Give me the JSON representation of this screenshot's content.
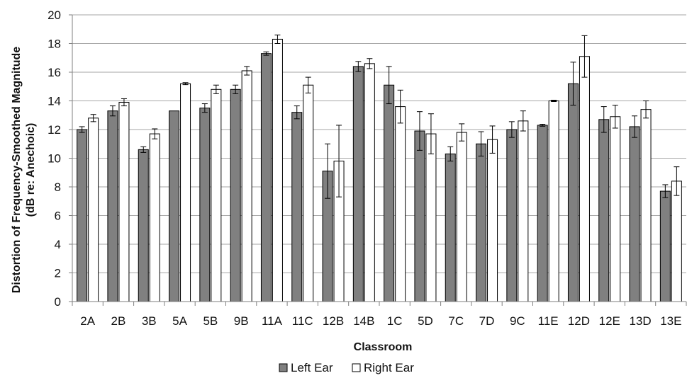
{
  "chart_data": {
    "type": "bar",
    "title": "",
    "xlabel": "Classroom",
    "ylabel": "Distortion  of Frequency-Smoothed Magnitude",
    "ylabel_line2": "(dB re: Anechoic)",
    "ylim": [
      0,
      20
    ],
    "ytick_step": 2,
    "grid": true,
    "legend_position": "bottom",
    "categories": [
      "2A",
      "2B",
      "3B",
      "5A",
      "5B",
      "9B",
      "11A",
      "11C",
      "12B",
      "14B",
      "1C",
      "5D",
      "7C",
      "7D",
      "9C",
      "11E",
      "12D",
      "12E",
      "13D",
      "13E"
    ],
    "series": [
      {
        "name": "Left Ear",
        "color": "#808080",
        "values": [
          12.0,
          13.3,
          10.6,
          13.3,
          13.5,
          14.8,
          17.3,
          13.2,
          9.1,
          16.4,
          15.1,
          11.9,
          10.3,
          11.0,
          12.0,
          12.3,
          15.2,
          12.7,
          12.2,
          7.7
        ],
        "errors": [
          0.2,
          0.35,
          0.2,
          0.0,
          0.3,
          0.3,
          0.12,
          0.45,
          1.9,
          0.35,
          1.3,
          1.35,
          0.5,
          0.85,
          0.55,
          0.07,
          1.5,
          0.9,
          0.75,
          0.45
        ]
      },
      {
        "name": "Right Ear",
        "color": "#ffffff",
        "values": [
          12.8,
          13.9,
          11.7,
          15.2,
          14.8,
          16.1,
          18.3,
          15.1,
          9.8,
          16.6,
          13.6,
          11.7,
          11.8,
          11.3,
          12.6,
          14.0,
          17.1,
          12.9,
          13.4,
          8.4
        ],
        "errors": [
          0.25,
          0.25,
          0.35,
          0.07,
          0.3,
          0.3,
          0.3,
          0.55,
          2.5,
          0.35,
          1.15,
          1.4,
          0.6,
          0.95,
          0.7,
          0.05,
          1.45,
          0.8,
          0.6,
          1.0
        ]
      }
    ]
  }
}
